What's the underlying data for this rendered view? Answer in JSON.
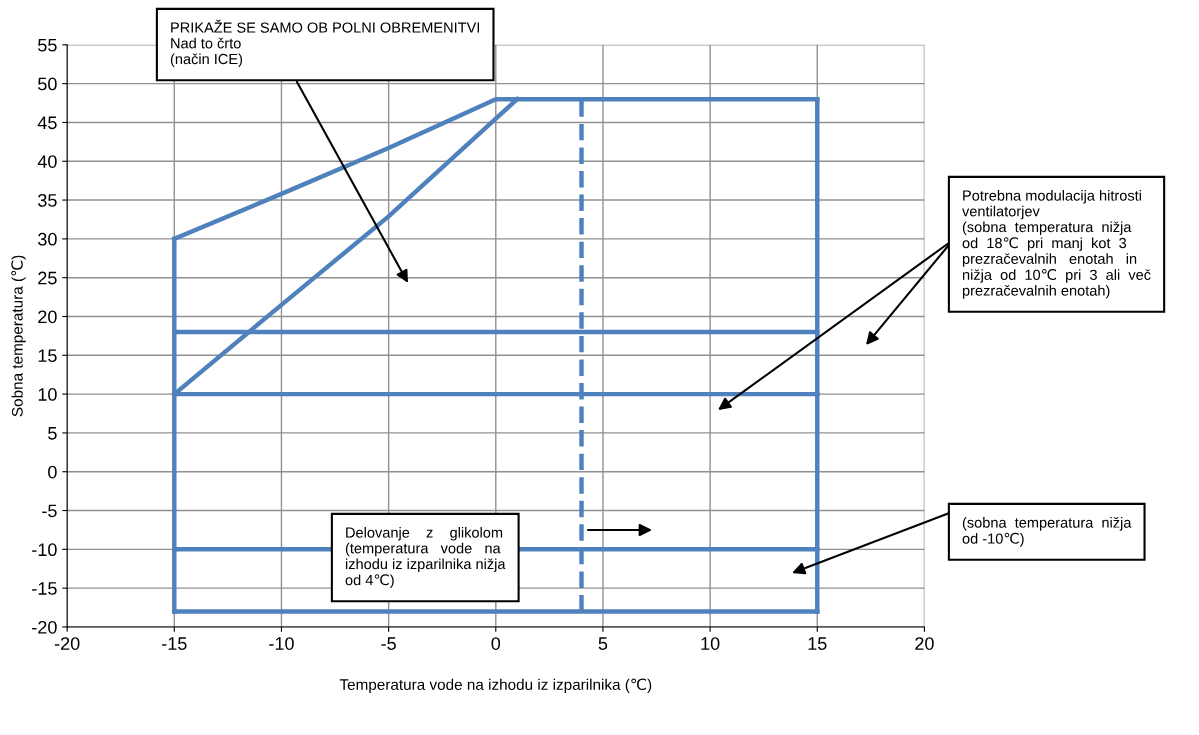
{
  "chart_data": {
    "type": "line",
    "xlabel": "Temperatura vode na izhodu iz izparilnika (℃)",
    "ylabel": "Sobna temperatura (℃)",
    "xlim": [
      -20,
      20
    ],
    "ylim": [
      -20,
      55
    ],
    "xticks": [
      -20,
      -15,
      -10,
      -5,
      0,
      5,
      10,
      15,
      20
    ],
    "yticks": [
      -20,
      -15,
      -10,
      -5,
      0,
      5,
      10,
      15,
      20,
      25,
      30,
      35,
      40,
      45,
      50,
      55
    ],
    "grid": true,
    "series": [
      {
        "color": "#4f81bd",
        "x": [
          -15,
          -10,
          -5,
          0,
          15
        ],
        "values": [
          30,
          35.8,
          41.7,
          48,
          48
        ]
      },
      {
        "color": "#4f81bd",
        "x": [
          -15,
          -10,
          -5,
          0,
          1
        ],
        "values": [
          10,
          21.5,
          32.9,
          45.5,
          48
        ]
      },
      {
        "color": "#4f81bd",
        "x": [
          -15,
          15
        ],
        "values": [
          18,
          18
        ]
      },
      {
        "color": "#4f81bd",
        "x": [
          -15,
          15
        ],
        "values": [
          10,
          10
        ]
      },
      {
        "color": "#4f81bd",
        "x": [
          -15,
          15
        ],
        "values": [
          -10,
          -10
        ]
      },
      {
        "color": "#4f81bd",
        "x": [
          -15,
          15
        ],
        "values": [
          -18,
          -18
        ]
      },
      {
        "color": "#4f81bd",
        "x": [
          -15,
          -15
        ],
        "values": [
          -18,
          30
        ]
      },
      {
        "color": "#4f81bd",
        "x": [
          15,
          15
        ],
        "values": [
          -18,
          48
        ]
      },
      {
        "color": "#4f81bd",
        "x": [
          4,
          4
        ],
        "values": [
          -18,
          48
        ],
        "line_style": "dashed"
      }
    ],
    "annotations": [
      "PRIKAŽE SE SAMO OB POLNI OBREMENITVI\nNad to črto\n(način ICE)",
      "Potrebna modulacija hitrosti\nventilatorjev\n(sobna  temperatura  nižja\nod  18℃  pri  manj  kot  3\nprezračevalnih   enotah   in\nnižja  od  10℃  pri  3  ali  več\nprezračevalnih enotah)",
      "Delovanje    z    glikolom\n(temperatura   vode   na\nizhodu iz izparilnika nižja\nod 4℃)",
      "(sobna  temperatura  nižja\nod -10℃)"
    ]
  }
}
